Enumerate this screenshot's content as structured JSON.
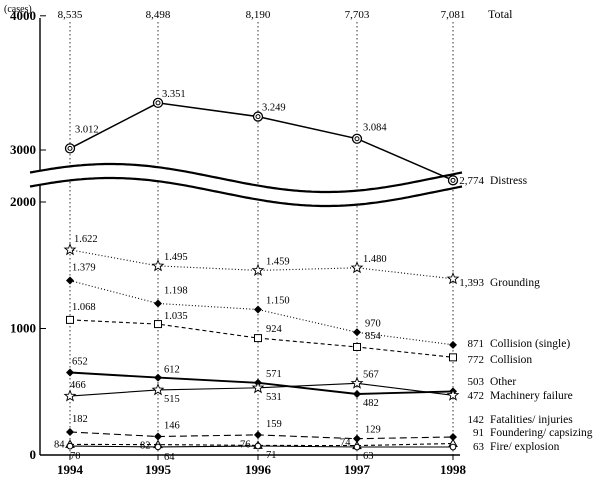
{
  "chart_data": {
    "type": "line",
    "title": "",
    "ylabel": "(cases)",
    "xlabel": "",
    "x": [
      "1994",
      "1995",
      "1996",
      "1997",
      "1998"
    ],
    "y_ticks": [
      "0",
      "1000",
      "2000",
      "3000",
      "4000"
    ],
    "axis_break": "between 2000 and 3000 (wavy break symbol)",
    "totals_label": "Total",
    "totals": [
      "8,535",
      "8,498",
      "8,190",
      "7,703",
      "7,081"
    ],
    "series": [
      {
        "name": "Distress",
        "values": [
          3012,
          3351,
          3249,
          3084,
          2774
        ],
        "labels": [
          "3.012",
          "3.351",
          "3.249",
          "3.084",
          "2,774"
        ],
        "style": "solid",
        "marker": "circle-dot"
      },
      {
        "name": "Grounding",
        "values": [
          1622,
          1495,
          1459,
          1480,
          1393
        ],
        "labels": [
          "1.622",
          "1.495",
          "1.459",
          "1.480",
          "1,393"
        ],
        "style": "dotted",
        "marker": "star"
      },
      {
        "name": "Collision (single)",
        "values": [
          1379,
          1198,
          1150,
          970,
          871
        ],
        "labels": [
          "1.379",
          "1.198",
          "1.150",
          "970",
          "871"
        ],
        "style": "dotted",
        "marker": "diamond"
      },
      {
        "name": "Collision",
        "values": [
          1068,
          1035,
          924,
          854,
          772
        ],
        "labels": [
          "1.068",
          "1.035",
          "924",
          "854",
          "772"
        ],
        "style": "dashed",
        "marker": "square"
      },
      {
        "name": "Other",
        "values": [
          652,
          612,
          571,
          482,
          503
        ],
        "labels": [
          "652",
          "612",
          "571",
          "482",
          "503"
        ],
        "style": "solid-bold",
        "marker": "diamond"
      },
      {
        "name": "Machinery failure",
        "values": [
          466,
          515,
          531,
          567,
          472
        ],
        "labels": [
          "466",
          "515",
          "531",
          "567",
          "472"
        ],
        "style": "solid",
        "marker": "star"
      },
      {
        "name": "Fatalities/ injuries",
        "values": [
          182,
          146,
          159,
          129,
          142
        ],
        "labels": [
          "182",
          "146",
          "159",
          "129",
          "142"
        ],
        "style": "dashed-long",
        "marker": "diamond"
      },
      {
        "name": "Foundering/ capsizing",
        "values": [
          84,
          82,
          76,
          74,
          91
        ],
        "labels": [
          "84",
          "82",
          "76",
          "74",
          "91"
        ],
        "style": "dashed",
        "marker": "triangle"
      },
      {
        "name": "Fire/ explosion",
        "values": [
          70,
          64,
          71,
          63,
          63
        ],
        "labels": [
          "70",
          "64",
          "71",
          "63",
          "63"
        ],
        "style": "solid",
        "marker": "circle"
      }
    ]
  }
}
